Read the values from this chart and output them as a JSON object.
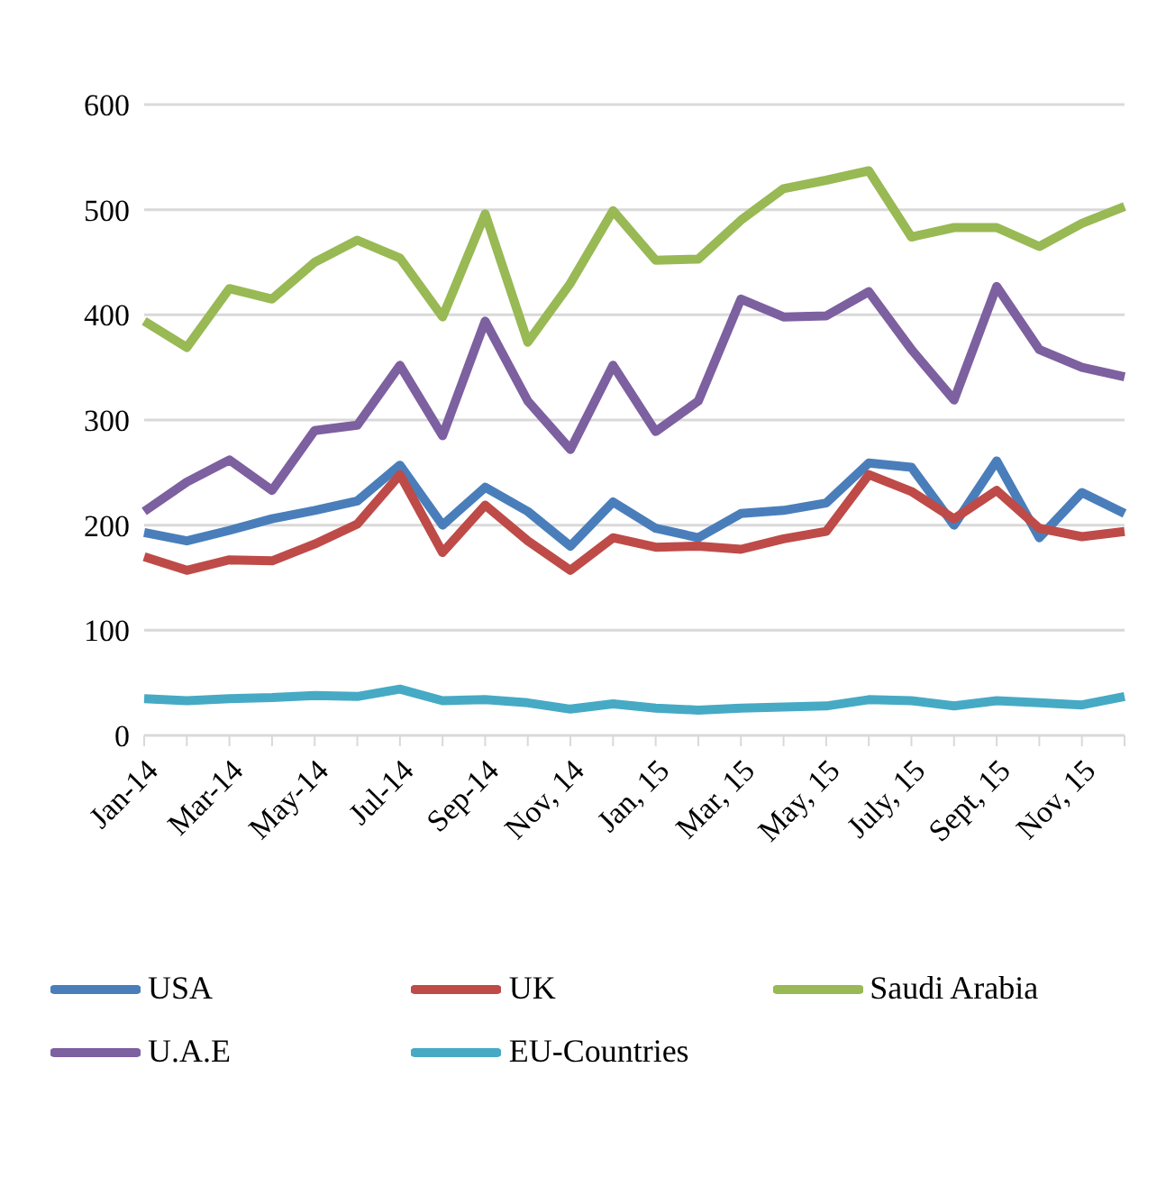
{
  "chart_data": {
    "type": "line",
    "categories": [
      "Jan-14",
      null,
      "Mar-14",
      null,
      "May-14",
      null,
      "Jul-14",
      null,
      "Sep-14",
      null,
      "Nov, 14",
      null,
      "Jan, 15",
      null,
      "Mar, 15",
      null,
      "May, 15",
      null,
      "July, 15",
      null,
      "Sept, 15",
      null,
      "Nov, 15",
      null
    ],
    "series": [
      {
        "name": "USA",
        "color": "#4a7ebb",
        "values": [
          193,
          185,
          195,
          206,
          214,
          223,
          257,
          200,
          236,
          213,
          180,
          222,
          197,
          188,
          211,
          214,
          221,
          259,
          255,
          200,
          261,
          188,
          231,
          211
        ]
      },
      {
        "name": "UK",
        "color": "#be4b48",
        "values": [
          170,
          157,
          167,
          166,
          182,
          201,
          248,
          174,
          219,
          185,
          157,
          188,
          179,
          180,
          177,
          187,
          194,
          248,
          232,
          206,
          233,
          197,
          189,
          194
        ]
      },
      {
        "name": "Saudi Arabia",
        "color": "#98b954",
        "values": [
          394,
          369,
          425,
          415,
          450,
          471,
          454,
          398,
          496,
          374,
          430,
          499,
          452,
          453,
          490,
          520,
          528,
          537,
          474,
          483,
          483,
          465,
          487,
          503
        ]
      },
      {
        "name": "U.A.E",
        "color": "#7d60a0",
        "values": [
          213,
          241,
          262,
          233,
          290,
          295,
          352,
          285,
          394,
          318,
          272,
          352,
          289,
          318,
          415,
          398,
          399,
          422,
          367,
          319,
          427,
          367,
          350,
          341
        ]
      },
      {
        "name": "EU-Countries",
        "color": "#46aac5",
        "values": [
          35,
          33,
          35,
          36,
          38,
          37,
          44,
          33,
          34,
          31,
          25,
          30,
          26,
          24,
          26,
          27,
          28,
          34,
          33,
          28,
          33,
          31,
          29,
          37
        ]
      }
    ],
    "ylim": [
      0,
      600
    ],
    "yticks": [
      0,
      100,
      200,
      300,
      400,
      500,
      600
    ],
    "grid": "y",
    "legend": "bottom",
    "marker": "none",
    "line_style": "solid"
  }
}
